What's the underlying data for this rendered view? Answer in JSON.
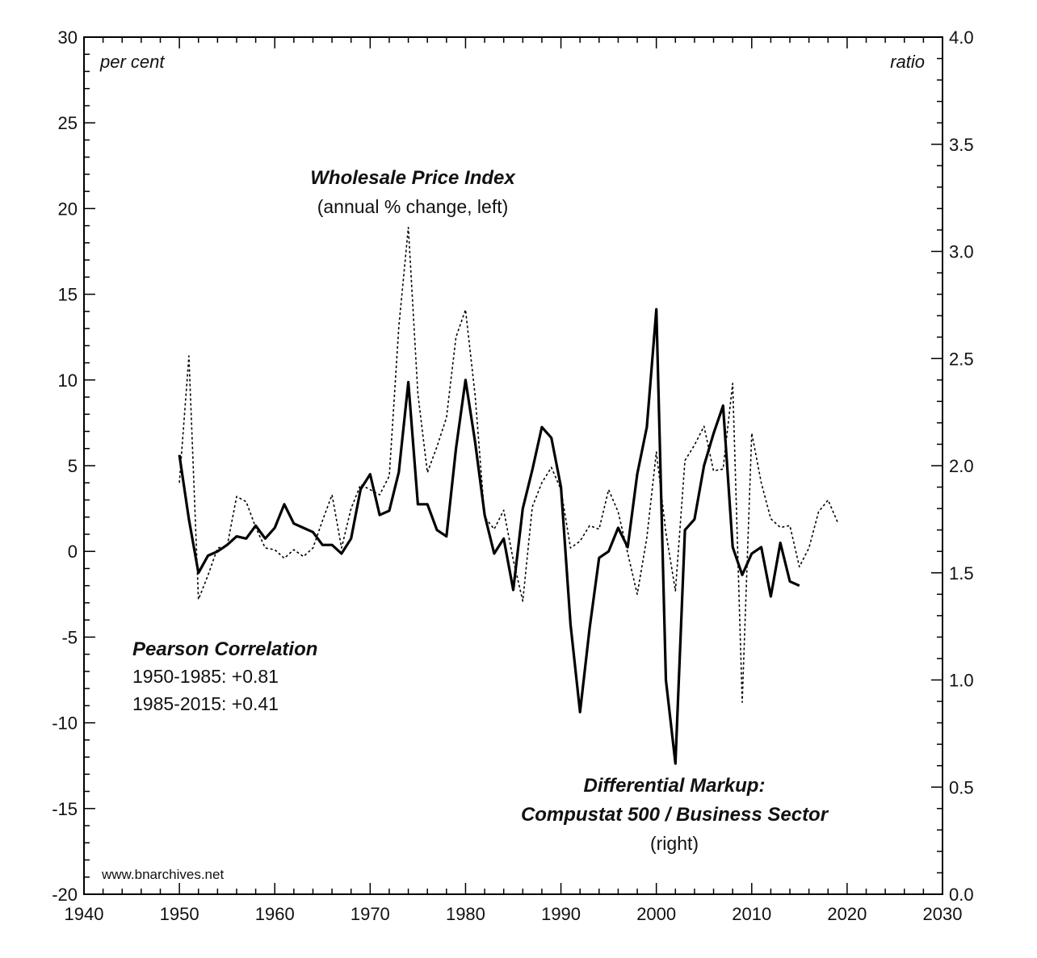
{
  "chart_data": {
    "type": "line",
    "x_axis": {
      "min": 1940,
      "max": 2030,
      "ticks": [
        1940,
        1950,
        1960,
        1970,
        1980,
        1990,
        2000,
        2010,
        2020,
        2030
      ]
    },
    "y_left": {
      "label": "per cent",
      "min": -20,
      "max": 30,
      "ticks": [
        -20,
        -15,
        -10,
        -5,
        0,
        5,
        10,
        15,
        20,
        25,
        30
      ]
    },
    "y_right": {
      "label": "ratio",
      "min": 0.0,
      "max": 4.0,
      "ticks": [
        "0.0",
        "0.5",
        "1.0",
        "1.5",
        "2.0",
        "2.5",
        "3.0",
        "3.5",
        "4.0"
      ]
    },
    "annotations": {
      "wpi_title": "Wholesale Price Index",
      "wpi_sub": "(annual % change, left)",
      "markup_title_1": "Differential Markup:",
      "markup_title_2": "Compustat 500 / Business Sector",
      "markup_sub": "(right)",
      "pearson_title": "Pearson Correlation",
      "pearson_1": "1950-1985: +0.81",
      "pearson_2": "1985-2015: +0.41",
      "credit": "www.bnarchives.net"
    },
    "series": [
      {
        "axis": "left",
        "style": "dotted",
        "x": [
          1950,
          1951,
          1952,
          1953,
          1954,
          1955,
          1956,
          1957,
          1958,
          1959,
          1960,
          1961,
          1962,
          1963,
          1964,
          1965,
          1966,
          1967,
          1968,
          1969,
          1970,
          1971,
          1972,
          1973,
          1974,
          1975,
          1976,
          1977,
          1978,
          1979,
          1980,
          1981,
          1982,
          1983,
          1984,
          1985,
          1986,
          1987,
          1988,
          1989,
          1990,
          1991,
          1992,
          1993,
          1994,
          1995,
          1996,
          1997,
          1998,
          1999,
          2000,
          2001,
          2002,
          2003,
          2004,
          2005,
          2006,
          2007,
          2008,
          2009,
          2010,
          2011,
          2012,
          2013,
          2014,
          2015,
          2016,
          2017,
          2018,
          2019
        ],
        "y": [
          4.0,
          11.4,
          -2.8,
          -1.4,
          0.2,
          0.3,
          3.2,
          2.9,
          1.4,
          0.2,
          0.1,
          -0.4,
          0.1,
          -0.3,
          0.2,
          1.8,
          3.3,
          0.2,
          2.5,
          3.9,
          3.6,
          3.3,
          4.4,
          13.1,
          18.9,
          9.2,
          4.6,
          6.1,
          7.8,
          12.5,
          14.1,
          9.1,
          2.0,
          1.3,
          2.4,
          -0.5,
          -2.9,
          2.6,
          4.0,
          4.9,
          3.6,
          0.2,
          0.6,
          1.5,
          1.3,
          3.6,
          2.3,
          -0.1,
          -2.5,
          0.8,
          5.8,
          1.1,
          -2.3,
          5.3,
          6.2,
          7.3,
          4.7,
          4.8,
          9.8,
          -8.8,
          6.9,
          4.0,
          1.9,
          1.4,
          1.5,
          -0.9,
          0.2,
          2.3,
          3.0,
          1.7
        ]
      },
      {
        "axis": "right",
        "style": "solid",
        "x": [
          1950,
          1951,
          1952,
          1953,
          1954,
          1955,
          1956,
          1957,
          1958,
          1959,
          1960,
          1961,
          1962,
          1963,
          1964,
          1965,
          1966,
          1967,
          1968,
          1969,
          1970,
          1971,
          1972,
          1973,
          1974,
          1975,
          1976,
          1977,
          1978,
          1979,
          1980,
          1981,
          1982,
          1983,
          1984,
          1985,
          1986,
          1987,
          1988,
          1989,
          1990,
          1991,
          1992,
          1993,
          1994,
          1995,
          1996,
          1997,
          1998,
          1999,
          2000,
          2001,
          2002,
          2003,
          2004,
          2005,
          2006,
          2007,
          2008,
          2009,
          2010,
          2011,
          2012,
          2013,
          2014,
          2015
        ],
        "y": [
          2.05,
          1.75,
          1.5,
          1.58,
          1.6,
          1.63,
          1.67,
          1.66,
          1.72,
          1.66,
          1.71,
          1.82,
          1.73,
          1.71,
          1.69,
          1.63,
          1.63,
          1.59,
          1.66,
          1.89,
          1.96,
          1.77,
          1.79,
          1.97,
          2.39,
          1.82,
          1.82,
          1.7,
          1.67,
          2.08,
          2.4,
          2.11,
          1.77,
          1.59,
          1.66,
          1.42,
          1.8,
          1.98,
          2.18,
          2.13,
          1.9,
          1.26,
          0.85,
          1.24,
          1.57,
          1.6,
          1.71,
          1.62,
          1.96,
          2.18,
          2.73,
          1.0,
          0.61,
          1.7,
          1.75,
          2.0,
          2.15,
          2.28,
          1.62,
          1.49,
          1.59,
          1.62,
          1.39,
          1.64,
          1.46,
          1.44
        ]
      }
    ]
  }
}
